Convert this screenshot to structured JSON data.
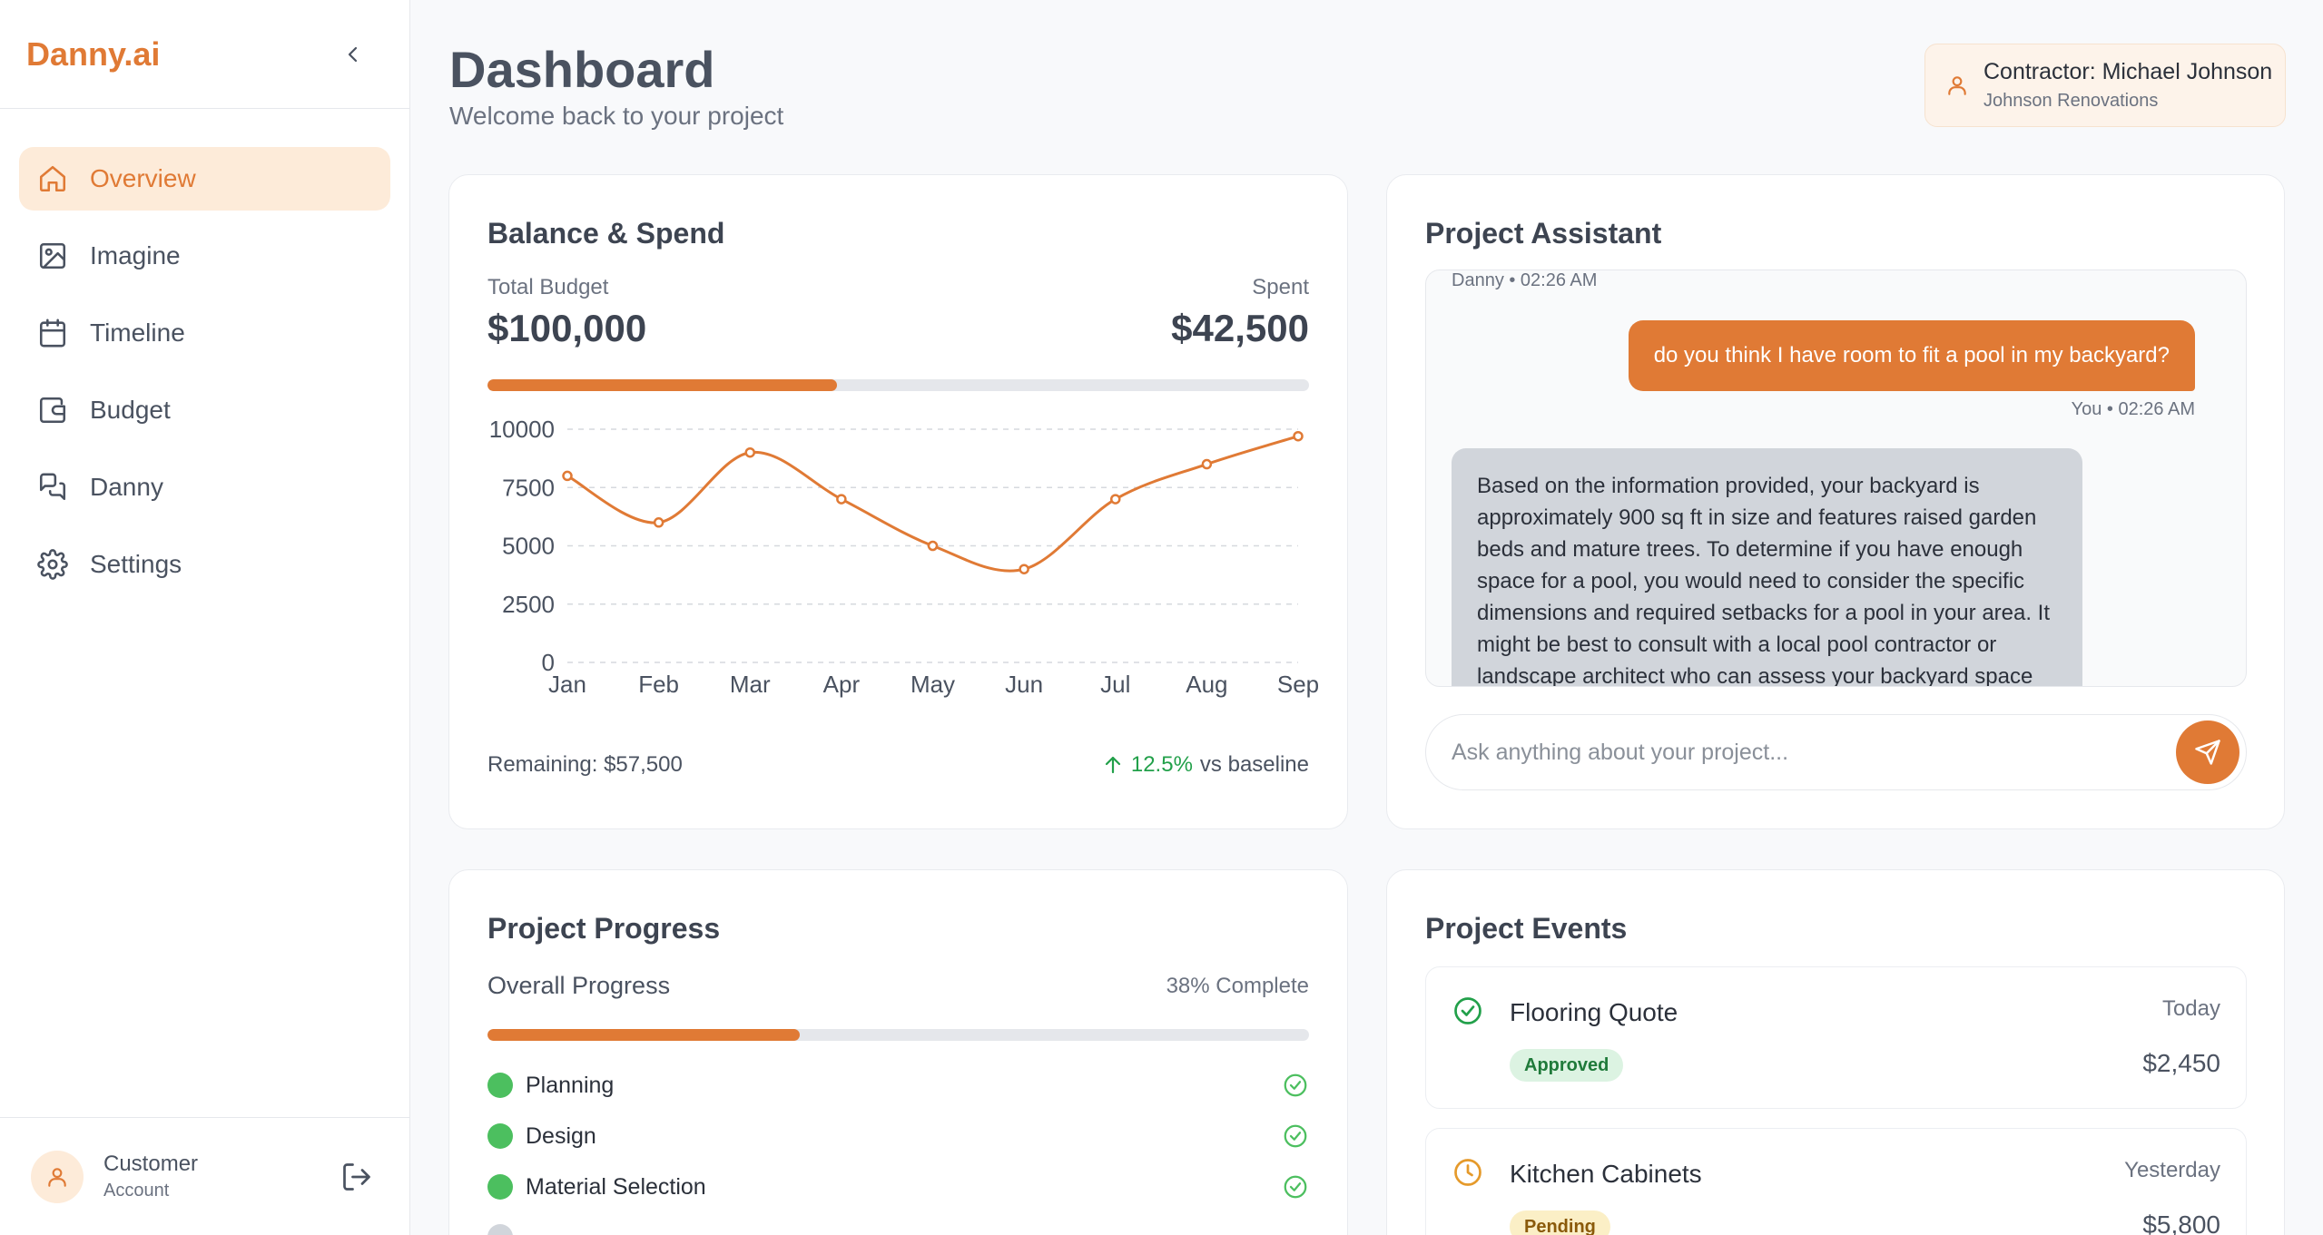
{
  "brand": "Danny.ai",
  "nav": [
    {
      "label": "Overview",
      "icon": "home-icon",
      "active": true
    },
    {
      "label": "Imagine",
      "icon": "image-icon"
    },
    {
      "label": "Timeline",
      "icon": "calendar-icon"
    },
    {
      "label": "Budget",
      "icon": "wallet-icon"
    },
    {
      "label": "Danny",
      "icon": "chat-icon"
    },
    {
      "label": "Settings",
      "icon": "gear-icon"
    }
  ],
  "account": {
    "name": "Customer",
    "role": "Account"
  },
  "header": {
    "title": "Dashboard",
    "subtitle": "Welcome back to your project"
  },
  "contractor": {
    "name": "Contractor: Michael Johnson",
    "company": "Johnson Renovations"
  },
  "balance": {
    "title": "Balance & Spend",
    "budget_label": "Total Budget",
    "budget_value": "$100,000",
    "spent_label": "Spent",
    "spent_value": "$42,500",
    "spent_fraction": 0.425,
    "remaining": "Remaining: $57,500",
    "trend_pct": "12.5%",
    "trend_suffix": "vs baseline"
  },
  "chart_data": {
    "type": "line",
    "categories": [
      "Jan",
      "Feb",
      "Mar",
      "Apr",
      "May",
      "Jun",
      "Jul",
      "Aug",
      "Sep"
    ],
    "values": [
      8000,
      6000,
      9000,
      7000,
      5000,
      4000,
      7000,
      8500,
      9700
    ],
    "yticks": [
      0,
      2500,
      5000,
      7500,
      10000
    ],
    "ylim": [
      0,
      10000
    ],
    "grid": true,
    "color": "#e07a35"
  },
  "assistant": {
    "title": "Project Assistant",
    "top_meta": "Danny • 02:26 AM",
    "user_message": "do you think I have room to fit a pool in my backyard?",
    "user_meta": "You • 02:26 AM",
    "bot_message": "Based on the information provided, your backyard is approximately 900 sq ft in size and features raised garden beds and mature trees. To determine if you have enough space for a pool, you would need to consider the specific dimensions and required setbacks for a pool in your area. It might be best to consult with a local pool contractor or landscape architect who can assess your backyard space",
    "placeholder": "Ask anything about your project..."
  },
  "progress": {
    "title": "Project Progress",
    "overall_label": "Overall Progress",
    "overall_value": "38% Complete",
    "fraction": 0.38,
    "phases": [
      {
        "name": "Planning",
        "done": true
      },
      {
        "name": "Design",
        "done": true
      },
      {
        "name": "Material Selection",
        "done": true
      }
    ]
  },
  "events": {
    "title": "Project Events",
    "items": [
      {
        "title": "Flooring Quote",
        "date": "Today",
        "status": "Approved",
        "amount": "$2,450"
      },
      {
        "title": "Kitchen Cabinets",
        "date": "Yesterday",
        "status": "Pending",
        "amount": "$5,800"
      }
    ]
  },
  "colors": {
    "accent": "#e07a35",
    "success": "#4cbf5f",
    "pending": "#e59a2b"
  }
}
